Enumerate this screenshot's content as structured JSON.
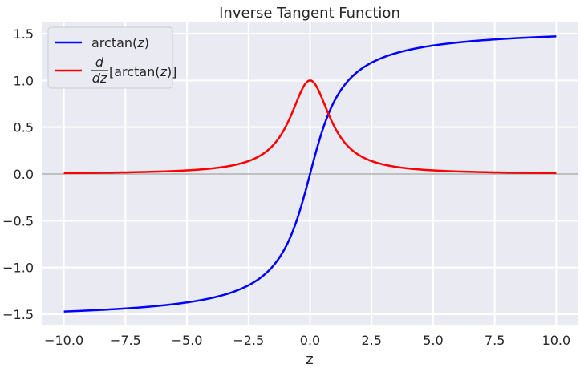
{
  "chart_data": {
    "type": "line",
    "title": "Inverse Tangent Function",
    "xlabel": "z",
    "ylabel": "",
    "xlim": [
      -10.9,
      10.9
    ],
    "ylim": [
      -1.62,
      1.62
    ],
    "x_ticks": [
      -10.0,
      -7.5,
      -5.0,
      -2.5,
      0.0,
      2.5,
      5.0,
      7.5,
      10.0
    ],
    "x_tick_labels": [
      "−10.0",
      "−7.5",
      "−5.0",
      "−2.5",
      "0.0",
      "2.5",
      "5.0",
      "7.5",
      "10.0"
    ],
    "y_ticks": [
      -1.5,
      -1.0,
      -0.5,
      0.0,
      0.5,
      1.0,
      1.5
    ],
    "y_tick_labels": [
      "−1.5",
      "−1.0",
      "−0.5",
      "0.0",
      "0.5",
      "1.0",
      "1.5"
    ],
    "grid": true,
    "reference_lines": {
      "x": 0,
      "y": 0
    },
    "legend_placement": "top-left",
    "x_range": [
      -10,
      10
    ],
    "series": [
      {
        "name": "arctan(z)",
        "color": "#0000ff",
        "x": [
          -10,
          -9,
          -8,
          -7,
          -6,
          -5,
          -4,
          -3,
          -2.5,
          -2,
          -1.5,
          -1,
          -0.75,
          -0.5,
          -0.25,
          0,
          0.25,
          0.5,
          0.75,
          1,
          1.5,
          2,
          2.5,
          3,
          4,
          5,
          6,
          7,
          8,
          9,
          10
        ],
        "y": [
          -1.471,
          -1.46,
          -1.446,
          -1.429,
          -1.406,
          -1.373,
          -1.326,
          -1.249,
          -1.19,
          -1.107,
          -0.983,
          -0.785,
          -0.644,
          -0.464,
          -0.245,
          0.0,
          0.245,
          0.464,
          0.644,
          0.785,
          0.983,
          1.107,
          1.19,
          1.249,
          1.326,
          1.373,
          1.406,
          1.429,
          1.446,
          1.46,
          1.471
        ]
      },
      {
        "name": "d/dz[arctan(z)]",
        "color": "#ff0000",
        "x": [
          -10,
          -9,
          -8,
          -7,
          -6,
          -5,
          -4,
          -3,
          -2.5,
          -2,
          -1.5,
          -1,
          -0.75,
          -0.5,
          -0.25,
          0,
          0.25,
          0.5,
          0.75,
          1,
          1.5,
          2,
          2.5,
          3,
          4,
          5,
          6,
          7,
          8,
          9,
          10
        ],
        "y": [
          0.0099,
          0.0122,
          0.0154,
          0.02,
          0.027,
          0.0385,
          0.0588,
          0.1,
          0.1379,
          0.2,
          0.3077,
          0.5,
          0.64,
          0.8,
          0.9412,
          1.0,
          0.9412,
          0.8,
          0.64,
          0.5,
          0.3077,
          0.2,
          0.1379,
          0.1,
          0.0588,
          0.0385,
          0.027,
          0.02,
          0.0154,
          0.0122,
          0.0099
        ]
      }
    ],
    "legend": {
      "entry_1": {
        "prefix": "arctan(",
        "var": "z",
        "suffix": ")"
      },
      "entry_2": {
        "num": "d",
        "den": "dz",
        "prefix": "[arctan(",
        "var": "z",
        "suffix": ")]"
      }
    }
  }
}
